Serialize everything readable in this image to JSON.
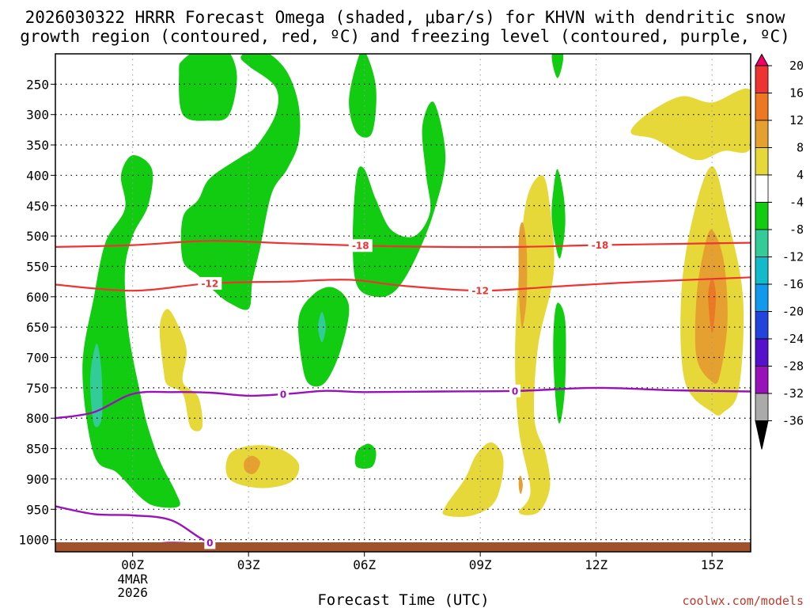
{
  "chart_data": {
    "type": "time-height cross section",
    "title_line1": "2026030322 HRRR Forecast Omega (shaded, μbar/s) for KHVN with dendritic snow",
    "title_line2": "growth region (contoured, red, ºC) and freezing level (contoured, purple, ºC)",
    "xlabel": "Forecast Time (UTC)",
    "credit": "coolwx.com/models",
    "x_ticks": [
      {
        "hour": 2,
        "label": "00Z",
        "sub1": "4MAR",
        "sub2": "2026"
      },
      {
        "hour": 5,
        "label": "03Z"
      },
      {
        "hour": 8,
        "label": "06Z"
      },
      {
        "hour": 11,
        "label": "09Z"
      },
      {
        "hour": 14,
        "label": "12Z"
      },
      {
        "hour": 17,
        "label": "15Z"
      }
    ],
    "x_range_hours": [
      0,
      18
    ],
    "y_ticks_hpa": [
      250,
      300,
      350,
      400,
      450,
      500,
      550,
      600,
      650,
      700,
      750,
      800,
      850,
      900,
      950,
      1000
    ],
    "y_range_hpa": [
      200,
      1020
    ],
    "colorbar": {
      "labels": [
        "20",
        "16",
        "12",
        "8",
        "4",
        "-4",
        "-8",
        "-12",
        "-16",
        "-20",
        "-24",
        "-28",
        "-32",
        "-36"
      ],
      "colors": [
        "#ee0066",
        "#ee3333",
        "#ee7722",
        "#e6a030",
        "#e6d838",
        "#ffffff",
        "#11cc11",
        "#33cc99",
        "#11bbcc",
        "#1199ee",
        "#2244dd",
        "#5511cc",
        "#9911bb",
        "#aaaaaa"
      ]
    },
    "colors": {
      "green": "#11cc11",
      "teal": "#33cc99",
      "yellow": "#e6d838",
      "gold": "#e6a030",
      "orange": "#ee7722",
      "red": "#ee3333",
      "contour_red": "#ee3333",
      "contour_purple": "#9911bb",
      "terrain": "#a0522d"
    },
    "contours": {
      "dgz_top": {
        "label": "-18",
        "label_hours": [
          7.9,
          14.1
        ],
        "points": [
          [
            0,
            518
          ],
          [
            2,
            515
          ],
          [
            4,
            508
          ],
          [
            6,
            512
          ],
          [
            8,
            516
          ],
          [
            10,
            518
          ],
          [
            12,
            518
          ],
          [
            14,
            515
          ],
          [
            16,
            513
          ],
          [
            18,
            511
          ]
        ]
      },
      "dgz_bottom": {
        "label": "-12",
        "label_hours": [
          4.0,
          11.0
        ],
        "points": [
          [
            0,
            580
          ],
          [
            2,
            590
          ],
          [
            4,
            578
          ],
          [
            6,
            575
          ],
          [
            7.6,
            572
          ],
          [
            9,
            582
          ],
          [
            11,
            590
          ],
          [
            13,
            583
          ],
          [
            15,
            576
          ],
          [
            18,
            568
          ]
        ]
      },
      "freezing_upper": {
        "label": "0",
        "label_hours": [
          5.9,
          11.9
        ],
        "points": [
          [
            0,
            800
          ],
          [
            1,
            790
          ],
          [
            2,
            760
          ],
          [
            3,
            757
          ],
          [
            4,
            758
          ],
          [
            5,
            763
          ],
          [
            6,
            760
          ],
          [
            7,
            755
          ],
          [
            8,
            757
          ],
          [
            10,
            756
          ],
          [
            12,
            755
          ],
          [
            14,
            750
          ],
          [
            16,
            754
          ],
          [
            18,
            756
          ]
        ]
      },
      "freezing_lower": {
        "label": "0",
        "label_hours": [
          4.0
        ],
        "points": [
          [
            0,
            945
          ],
          [
            1,
            958
          ],
          [
            2,
            960
          ],
          [
            3,
            968
          ],
          [
            4,
            1005
          ],
          [
            5,
            1010
          ],
          [
            6,
            1008
          ],
          [
            7,
            1010
          ],
          [
            8,
            1010
          ]
        ]
      },
      "freezing_surface": {
        "points": [
          [
            0,
            1010
          ],
          [
            1,
            1012
          ],
          [
            2,
            1010
          ],
          [
            3,
            1005
          ],
          [
            4,
            1008
          ],
          [
            5,
            1010
          ],
          [
            6,
            1012
          ]
        ]
      }
    },
    "omega_regions": [
      {
        "color": "green",
        "points": [
          [
            1,
            860
          ],
          [
            0.7,
            720
          ],
          [
            1.0,
            600
          ],
          [
            1.3,
            510
          ],
          [
            1.8,
            455
          ],
          [
            1.7,
            400
          ],
          [
            2.0,
            367
          ],
          [
            2.5,
            390
          ],
          [
            2.4,
            450
          ],
          [
            2.0,
            500
          ],
          [
            1.8,
            560
          ],
          [
            1.9,
            660
          ],
          [
            2.2,
            760
          ],
          [
            2.4,
            815
          ],
          [
            2.7,
            870
          ],
          [
            3.1,
            920
          ],
          [
            3.2,
            945
          ],
          [
            2.6,
            945
          ],
          [
            2.2,
            930
          ],
          [
            1.6,
            890
          ]
        ]
      },
      {
        "color": "teal",
        "points": [
          [
            1.0,
            810
          ],
          [
            0.9,
            740
          ],
          [
            1.0,
            690
          ],
          [
            1.1,
            680
          ],
          [
            1.2,
            730
          ],
          [
            1.2,
            800
          ]
        ]
      },
      {
        "color": "green",
        "points": [
          [
            3.3,
            540
          ],
          [
            3.3,
            470
          ],
          [
            3.7,
            440
          ],
          [
            4.0,
            405
          ],
          [
            4.8,
            370
          ],
          [
            5.2,
            352
          ],
          [
            5.7,
            300
          ],
          [
            5.7,
            255
          ],
          [
            5.0,
            220
          ],
          [
            4.8,
            205
          ],
          [
            5.1,
            193
          ],
          [
            5.5,
            198
          ],
          [
            6.0,
            230
          ],
          [
            6.3,
            285
          ],
          [
            6.3,
            345
          ],
          [
            6.0,
            390
          ],
          [
            5.6,
            430
          ],
          [
            5.3,
            520
          ],
          [
            5.1,
            575
          ],
          [
            5.0,
            620
          ],
          [
            4.5,
            610
          ],
          [
            4.1,
            590
          ],
          [
            3.7,
            565
          ]
        ]
      },
      {
        "color": "green",
        "points": [
          [
            3.3,
            300
          ],
          [
            3.2,
            230
          ],
          [
            3.3,
            210
          ],
          [
            3.8,
            190
          ],
          [
            4.4,
            190
          ],
          [
            4.7,
            235
          ],
          [
            4.5,
            300
          ],
          [
            4.0,
            310
          ]
        ]
      },
      {
        "color": "green",
        "points": [
          [
            7.8,
            330
          ],
          [
            7.6,
            280
          ],
          [
            7.8,
            215
          ],
          [
            8.0,
            195
          ],
          [
            8.3,
            255
          ],
          [
            8.2,
            330
          ]
        ]
      },
      {
        "color": "green",
        "points": [
          [
            7.8,
            580
          ],
          [
            7.7,
            500
          ],
          [
            7.8,
            400
          ],
          [
            8.0,
            390
          ],
          [
            8.3,
            440
          ],
          [
            8.7,
            490
          ],
          [
            9.3,
            500
          ],
          [
            9.7,
            460
          ],
          [
            9.6,
            400
          ],
          [
            9.5,
            320
          ],
          [
            9.8,
            280
          ],
          [
            10.1,
            370
          ],
          [
            9.8,
            460
          ],
          [
            9.3,
            540
          ],
          [
            8.8,
            590
          ],
          [
            8.3,
            600
          ]
        ]
      },
      {
        "color": "green",
        "points": [
          [
            6.4,
            715
          ],
          [
            6.3,
            635
          ],
          [
            6.7,
            595
          ],
          [
            7.2,
            585
          ],
          [
            7.6,
            615
          ],
          [
            7.4,
            685
          ],
          [
            7.0,
            740
          ],
          [
            6.6,
            745
          ]
        ]
      },
      {
        "color": "teal",
        "points": [
          [
            6.9,
            675
          ],
          [
            6.8,
            650
          ],
          [
            6.9,
            625
          ],
          [
            7.0,
            650
          ]
        ]
      },
      {
        "color": "green",
        "points": [
          [
            7.8,
            880
          ],
          [
            7.8,
            855
          ],
          [
            8.1,
            842
          ],
          [
            8.3,
            855
          ],
          [
            8.2,
            880
          ]
        ]
      },
      {
        "color": "green",
        "points": [
          [
            13.0,
            240
          ],
          [
            12.85,
            205
          ],
          [
            13.0,
            180
          ],
          [
            13.15,
            205
          ]
        ]
      },
      {
        "color": "green",
        "points": [
          [
            13.0,
            530
          ],
          [
            12.85,
            470
          ],
          [
            12.9,
            420
          ],
          [
            13.0,
            390
          ],
          [
            13.15,
            430
          ],
          [
            13.2,
            480
          ],
          [
            13.1,
            530
          ]
        ]
      },
      {
        "color": "green",
        "points": [
          [
            13.0,
            800
          ],
          [
            12.9,
            720
          ],
          [
            12.9,
            650
          ],
          [
            13.0,
            610
          ],
          [
            13.2,
            640
          ],
          [
            13.2,
            740
          ],
          [
            13.1,
            800
          ]
        ]
      },
      {
        "color": "yellow",
        "points": [
          [
            2.8,
            720
          ],
          [
            2.7,
            650
          ],
          [
            2.9,
            620
          ],
          [
            3.2,
            650
          ],
          [
            3.4,
            690
          ],
          [
            3.3,
            740
          ],
          [
            3.7,
            765
          ],
          [
            3.8,
            815
          ],
          [
            3.5,
            815
          ],
          [
            3.3,
            760
          ],
          [
            2.9,
            745
          ]
        ]
      },
      {
        "color": "yellow",
        "points": [
          [
            4.5,
            900
          ],
          [
            4.5,
            860
          ],
          [
            5.1,
            845
          ],
          [
            5.8,
            850
          ],
          [
            6.3,
            875
          ],
          [
            6.1,
            905
          ],
          [
            5.3,
            915
          ]
        ]
      },
      {
        "color": "gold",
        "points": [
          [
            4.9,
            885
          ],
          [
            4.9,
            870
          ],
          [
            5.1,
            862
          ],
          [
            5.3,
            872
          ],
          [
            5.2,
            888
          ],
          [
            5.05,
            892
          ]
        ]
      },
      {
        "color": "yellow",
        "points": [
          [
            10.1,
            960
          ],
          [
            10.1,
            945
          ],
          [
            10.6,
            900
          ],
          [
            10.9,
            860
          ],
          [
            11.3,
            840
          ],
          [
            11.6,
            870
          ],
          [
            11.4,
            935
          ],
          [
            10.8,
            960
          ]
        ]
      },
      {
        "color": "yellow",
        "points": [
          [
            12.3,
            920
          ],
          [
            12.0,
            820
          ],
          [
            11.9,
            700
          ],
          [
            12.0,
            560
          ],
          [
            12.2,
            440
          ],
          [
            12.6,
            400
          ],
          [
            12.8,
            450
          ],
          [
            12.9,
            560
          ],
          [
            12.5,
            680
          ],
          [
            12.4,
            800
          ],
          [
            12.7,
            860
          ],
          [
            12.8,
            915
          ],
          [
            12.5,
            955
          ],
          [
            12.0,
            955
          ]
        ]
      },
      {
        "color": "gold",
        "points": [
          [
            12.0,
            585
          ],
          [
            12.0,
            500
          ],
          [
            12.1,
            478
          ],
          [
            12.2,
            520
          ],
          [
            12.2,
            600
          ],
          [
            12.1,
            650
          ],
          [
            12.05,
            640
          ]
        ]
      },
      {
        "color": "gold",
        "points": [
          [
            12.0,
            915
          ],
          [
            12.0,
            900
          ],
          [
            12.05,
            895
          ],
          [
            12.1,
            910
          ],
          [
            12.05,
            925
          ]
        ]
      },
      {
        "color": "yellow",
        "points": [
          [
            17.0,
            790
          ],
          [
            16.3,
            740
          ],
          [
            16.2,
            600
          ],
          [
            16.5,
            470
          ],
          [
            17.0,
            385
          ],
          [
            17.4,
            470
          ],
          [
            17.8,
            600
          ],
          [
            17.7,
            750
          ],
          [
            17.3,
            790
          ]
        ]
      },
      {
        "color": "gold",
        "points": [
          [
            17.0,
            740
          ],
          [
            16.6,
            700
          ],
          [
            16.6,
            600
          ],
          [
            16.8,
            520
          ],
          [
            17.0,
            490
          ],
          [
            17.3,
            540
          ],
          [
            17.4,
            640
          ],
          [
            17.2,
            730
          ]
        ]
      },
      {
        "color": "orange",
        "points": [
          [
            17.0,
            660
          ],
          [
            16.9,
            600
          ],
          [
            17.0,
            570
          ],
          [
            17.1,
            600
          ]
        ]
      },
      {
        "color": "yellow",
        "points": [
          [
            14.9,
            330
          ],
          [
            15.3,
            300
          ],
          [
            16.2,
            270
          ],
          [
            17.0,
            280
          ],
          [
            18.0,
            260
          ],
          [
            18.0,
            355
          ],
          [
            17.3,
            360
          ],
          [
            16.7,
            375
          ],
          [
            16.2,
            365
          ],
          [
            15.5,
            340
          ]
        ]
      }
    ]
  }
}
